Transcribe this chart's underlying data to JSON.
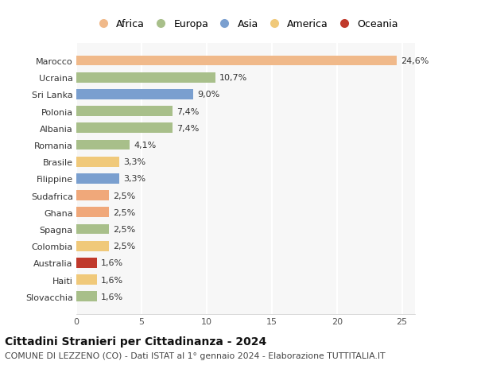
{
  "categories": [
    "Slovacchia",
    "Haiti",
    "Australia",
    "Colombia",
    "Spagna",
    "Ghana",
    "Sudafrica",
    "Filippine",
    "Brasile",
    "Romania",
    "Albania",
    "Polonia",
    "Sri Lanka",
    "Ucraina",
    "Marocco"
  ],
  "values": [
    1.6,
    1.6,
    1.6,
    2.5,
    2.5,
    2.5,
    2.5,
    3.3,
    3.3,
    4.1,
    7.4,
    7.4,
    9.0,
    10.7,
    24.6
  ],
  "labels": [
    "1,6%",
    "1,6%",
    "1,6%",
    "2,5%",
    "2,5%",
    "2,5%",
    "2,5%",
    "3,3%",
    "3,3%",
    "4,1%",
    "7,4%",
    "7,4%",
    "9,0%",
    "10,7%",
    "24,6%"
  ],
  "colors": [
    "#a8bf8a",
    "#f0c97a",
    "#c0392b",
    "#f0c97a",
    "#a8bf8a",
    "#f0a87a",
    "#f0a87a",
    "#7a9fcf",
    "#f0c97a",
    "#a8bf8a",
    "#a8bf8a",
    "#a8bf8a",
    "#7a9fcf",
    "#a8bf8a",
    "#f0b98a"
  ],
  "legend_labels": [
    "Africa",
    "Europa",
    "Asia",
    "America",
    "Oceania"
  ],
  "legend_colors": [
    "#f0b98a",
    "#a8bf8a",
    "#7a9fcf",
    "#f0c97a",
    "#c0392b"
  ],
  "title": "Cittadini Stranieri per Cittadinanza - 2024",
  "subtitle": "COMUNE DI LEZZENO (CO) - Dati ISTAT al 1° gennaio 2024 - Elaborazione TUTTITALIA.IT",
  "xlim": [
    0,
    26
  ],
  "xticks": [
    0,
    5,
    10,
    15,
    20,
    25
  ],
  "bg_color": "#ffffff",
  "plot_bg_color": "#f7f7f7",
  "bar_height": 0.6,
  "grid_color": "#ffffff",
  "label_fontsize": 8,
  "tick_fontsize": 8,
  "legend_fontsize": 9
}
